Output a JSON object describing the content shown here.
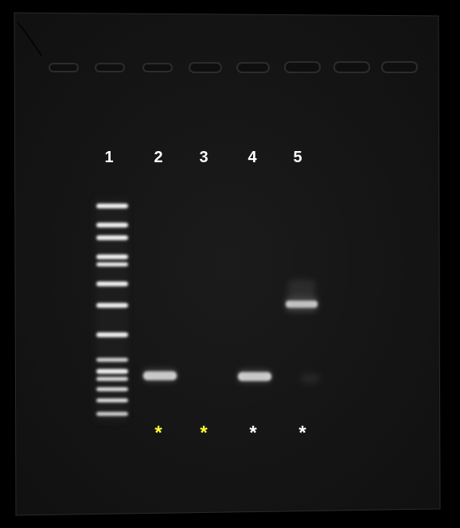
{
  "lanes": [
    {
      "label": "1",
      "marker": "",
      "marker_color": ""
    },
    {
      "label": "2",
      "marker": "*",
      "marker_color": "#ffff33"
    },
    {
      "label": "3",
      "marker": "*",
      "marker_color": "#ffff33"
    },
    {
      "label": "4",
      "marker": "*",
      "marker_color": "#ffffff"
    },
    {
      "label": "5",
      "marker": "*",
      "marker_color": "#ffffff"
    }
  ],
  "colors": {
    "background": "#000000",
    "gel": "#161616",
    "band": "#ffffff"
  }
}
